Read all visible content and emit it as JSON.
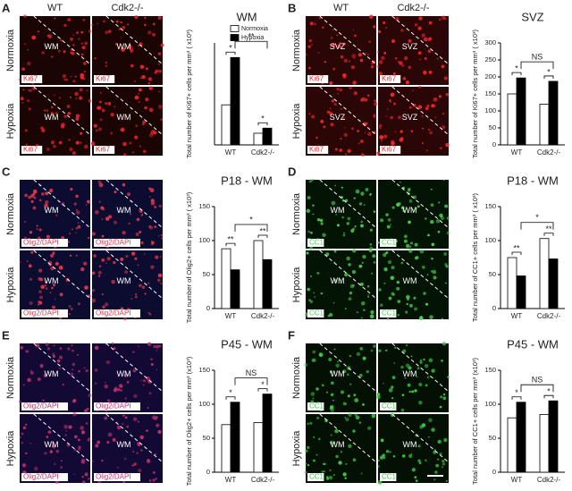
{
  "panels": [
    {
      "letter": "A",
      "columns": [
        "WT",
        "Cdk2-/-"
      ],
      "rows": [
        "Normoxia",
        "Hypoxia"
      ],
      "region": "WM",
      "stain": "Ki67",
      "dot_color": "#e8242a",
      "background": "#1a0404"
    },
    {
      "letter": "B",
      "columns": [
        "WT",
        "Cdk2-/-"
      ],
      "rows": [
        "Normoxia",
        "Hypoxia"
      ],
      "region": "SVZ",
      "stain": "Ki67",
      "dot_color": "#f0262c",
      "background": "#2a0606"
    },
    {
      "letter": "C",
      "columns": [
        null,
        null
      ],
      "rows": [
        "Normoxia",
        "Hypoxia"
      ],
      "region": "WM",
      "stain": "Olig2/DAPI",
      "dot_color": "#e0364a",
      "background": "#0c0c30"
    },
    {
      "letter": "D",
      "columns": [
        null,
        null
      ],
      "rows": [
        "Normoxia",
        "Hypoxia"
      ],
      "region": "WM",
      "stain": "CC1",
      "dot_color": "#4ed052",
      "background": "#041404"
    },
    {
      "letter": "E",
      "columns": [
        null,
        null
      ],
      "rows": [
        "Normoxia",
        "Hypoxia"
      ],
      "region": "WM",
      "stain": "Olig2/DAPI",
      "dot_color": "#c0306a",
      "background": "#120a34"
    },
    {
      "letter": "F",
      "columns": [
        null,
        null
      ],
      "rows": [
        "Normoxia",
        "Hypoxia"
      ],
      "region": "WM",
      "stain": "CC1",
      "dot_color": "#3ec844",
      "background": "#031003"
    }
  ],
  "chart_data": [
    {
      "type": "bar",
      "title": "WM",
      "y_label": "Total number of Ki67+ cells per mm³ ( x10³)",
      "categories": [
        "WT",
        "Cdk2-/-"
      ],
      "series": [
        {
          "name": "Normoxia",
          "color": "#ffffff",
          "values": [
            5.5,
            1.6
          ]
        },
        {
          "name": "Hypoxia",
          "color": "#000000",
          "values": [
            12,
            2.3
          ]
        }
      ],
      "ylim": [
        0,
        14
      ],
      "annotations": [
        "*",
        "*",
        "**"
      ],
      "legend": true
    },
    {
      "type": "bar",
      "title": "SVZ",
      "y_label": "Total number of Ki67+ cells per mm³ ( x10³)",
      "categories": [
        "WT",
        "Cdk2-/-"
      ],
      "series": [
        {
          "color": "#ffffff",
          "values": [
            150,
            120
          ]
        },
        {
          "color": "#000000",
          "values": [
            197,
            187
          ]
        }
      ],
      "ylim": [
        0,
        300
      ],
      "yticks": [
        0,
        50,
        100,
        150,
        200,
        250,
        300
      ],
      "annotations": [
        "*",
        "*",
        "NS"
      ],
      "legend": false
    },
    {
      "type": "bar",
      "title": "P18 - WM",
      "y_label": "Total number of Olig2+ cells per mm³ ( x10³)",
      "categories": [
        "WT",
        "Cdk2-/-"
      ],
      "series": [
        {
          "color": "#ffffff",
          "values": [
            88,
            100
          ]
        },
        {
          "color": "#000000",
          "values": [
            57,
            72
          ]
        }
      ],
      "ylim": [
        0,
        150
      ],
      "yticks": [
        0,
        50,
        100,
        150
      ],
      "annotations": [
        "**",
        "**",
        "*"
      ],
      "legend": false
    },
    {
      "type": "bar",
      "title": "P18 - WM",
      "y_label": "Total number of CC1+ cells per mm³ ( x10³)",
      "categories": [
        "WT",
        "Cdk2-/-"
      ],
      "series": [
        {
          "color": "#ffffff",
          "values": [
            75,
            103
          ]
        },
        {
          "color": "#000000",
          "values": [
            48,
            73
          ]
        }
      ],
      "ylim": [
        0,
        150
      ],
      "yticks": [
        0,
        50,
        100,
        150
      ],
      "annotations": [
        "**",
        "**",
        "*"
      ],
      "legend": false
    },
    {
      "type": "bar",
      "title": "P45 - WM",
      "y_label": "Total number of Olig2+ cells per mm³ (x10³)",
      "categories": [
        "WT",
        "Cdk2-/-"
      ],
      "series": [
        {
          "color": "#ffffff",
          "values": [
            70,
            73
          ]
        },
        {
          "color": "#000000",
          "values": [
            103,
            115
          ]
        }
      ],
      "ylim": [
        0,
        150
      ],
      "yticks": [
        0,
        50,
        100,
        150
      ],
      "annotations": [
        "*",
        "*",
        "NS"
      ],
      "legend": false
    },
    {
      "type": "bar",
      "title": "P45 - WM",
      "y_label": "Total number of CC1+ cells per mm³ (x10³)",
      "categories": [
        "WT",
        "Cdk2-/-"
      ],
      "series": [
        {
          "color": "#ffffff",
          "values": [
            80,
            85
          ]
        },
        {
          "color": "#000000",
          "values": [
            103,
            105
          ]
        }
      ],
      "ylim": [
        0,
        150
      ],
      "yticks": [
        0,
        50,
        100,
        150
      ],
      "annotations": [
        "*",
        "*",
        "NS"
      ],
      "legend": false
    }
  ]
}
